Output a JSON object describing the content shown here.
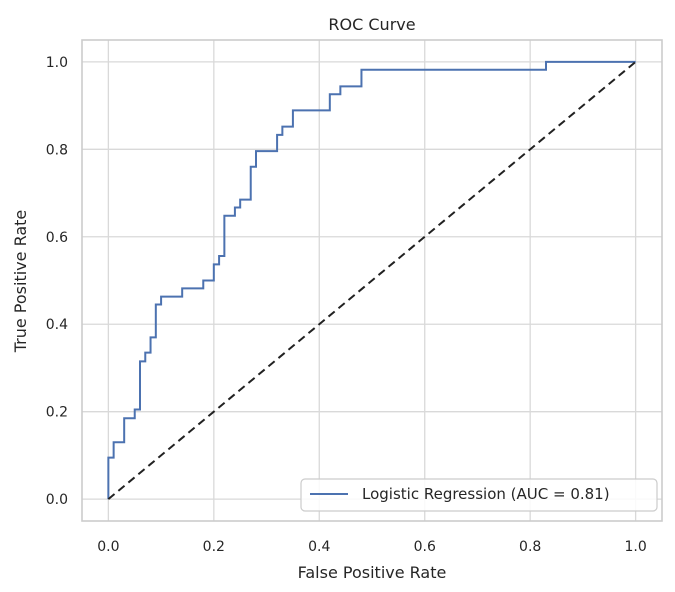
{
  "chart_data": {
    "type": "line",
    "title": "ROC Curve",
    "xlabel": "False Positive Rate",
    "ylabel": "True Positive Rate",
    "xlim": [
      -0.05,
      1.05
    ],
    "ylim": [
      -0.05,
      1.05
    ],
    "xticks": [
      0.0,
      0.2,
      0.4,
      0.6,
      0.8,
      1.0
    ],
    "yticks": [
      0.0,
      0.2,
      0.4,
      0.6,
      0.8,
      1.0
    ],
    "xtick_labels": [
      "0.0",
      "0.2",
      "0.4",
      "0.6",
      "0.8",
      "1.0"
    ],
    "ytick_labels": [
      "0.0",
      "0.2",
      "0.4",
      "0.6",
      "0.8",
      "1.0"
    ],
    "grid": true,
    "legend_position": "lower right",
    "series": [
      {
        "name": "Logistic Regression (AUC = 0.81)",
        "color": "#4c72b0",
        "style": "solid",
        "x": [
          0.0,
          0.0,
          0.01,
          0.01,
          0.03,
          0.03,
          0.05,
          0.05,
          0.06,
          0.06,
          0.07,
          0.07,
          0.08,
          0.08,
          0.09,
          0.09,
          0.1,
          0.1,
          0.14,
          0.14,
          0.18,
          0.18,
          0.2,
          0.2,
          0.21,
          0.21,
          0.22,
          0.22,
          0.24,
          0.24,
          0.25,
          0.25,
          0.27,
          0.27,
          0.28,
          0.28,
          0.32,
          0.32,
          0.33,
          0.33,
          0.35,
          0.35,
          0.42,
          0.42,
          0.44,
          0.44,
          0.48,
          0.48,
          0.83,
          0.83,
          1.0
        ],
        "y": [
          0.0,
          0.095,
          0.095,
          0.13,
          0.13,
          0.185,
          0.185,
          0.205,
          0.205,
          0.315,
          0.315,
          0.335,
          0.335,
          0.37,
          0.37,
          0.445,
          0.445,
          0.463,
          0.463,
          0.482,
          0.482,
          0.5,
          0.5,
          0.537,
          0.537,
          0.556,
          0.556,
          0.648,
          0.648,
          0.667,
          0.667,
          0.685,
          0.685,
          0.76,
          0.76,
          0.796,
          0.796,
          0.833,
          0.833,
          0.852,
          0.852,
          0.889,
          0.889,
          0.926,
          0.926,
          0.944,
          0.944,
          0.982,
          0.982,
          1.0,
          1.0
        ]
      },
      {
        "name": "",
        "color": "#222222",
        "style": "dashed",
        "x": [
          0.0,
          1.0
        ],
        "y": [
          0.0,
          1.0
        ]
      }
    ],
    "legend_entries": [
      "Logistic Regression (AUC = 0.81)"
    ]
  }
}
